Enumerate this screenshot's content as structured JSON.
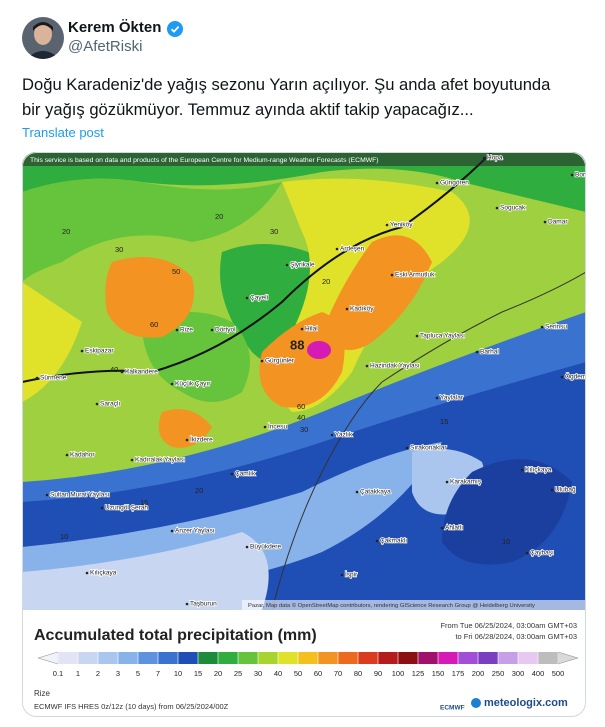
{
  "author": {
    "name": "Kerem Ökten",
    "handle": "@AfetRiski"
  },
  "post": {
    "lines": [
      "Doğu Karadeniz'de yağış sezonu Yarın açılıyor. Şu anda afet boyutunda",
      "bir yağış gözükmüyor. Temmuz ayında aktif takip yapacağız..."
    ],
    "translate": "Translate post"
  },
  "map": {
    "notice": "This service is based on data and products of the European Centre for Medium-range Weather Forecasts (ECMWF)",
    "attribution": "Pazar, Map data © OpenStreetMap contributors, rendering GIScience Research Group @ Heidelberg University",
    "max_value": "88",
    "places": [
      "Hopa",
      "Güngören",
      "Sogucak",
      "Borç",
      "Damar",
      "Yeniköy",
      "Ardeşen",
      "Şiyrikale",
      "Eski Armutluk",
      "Çayeli",
      "Kadıköy",
      "Rize",
      "Dörtyol",
      "Tapluca Yaylası",
      "Serinsu",
      "Eskipazar",
      "Hilal",
      "Gürgünler",
      "Hazindak Yaylası",
      "Barhal",
      "Sürmene",
      "Kalkandere",
      "Küçük Çayır",
      "Ögdem",
      "Yaylalar",
      "Saraçlı",
      "İkizdere",
      "Yazlık",
      "İncesu",
      "Sırakonaklar",
      "Kılıçkaya",
      "Karakamış",
      "Kadahor",
      "Kadıralak Yaylası",
      "Çamlık",
      "Sultan Murat Yaylası",
      "Uzungöl Şerah",
      "Çatakkaya",
      "Ulubağ",
      "Ahlatlı",
      "Anzer Yaylası",
      "Çakmaklı",
      "Büyükdere",
      "Çaybaşı",
      "İspir",
      "Kılıçkaya",
      "Taşburun"
    ],
    "contours": [
      20,
      30,
      20,
      50,
      60,
      40,
      30,
      60,
      40,
      30,
      20,
      15,
      10,
      15,
      10,
      20
    ]
  },
  "legend": {
    "title": "Accumulated total precipitation (mm)",
    "from": "From Tue 06/25/2024, 03:00am GMT+03",
    "to": "to Fri 06/28/2024, 03:00am GMT+03",
    "ticks": [
      0.1,
      1,
      2,
      3,
      5,
      7,
      10,
      15,
      20,
      25,
      30,
      40,
      50,
      60,
      70,
      80,
      90,
      100,
      125,
      150,
      175,
      200,
      250,
      300,
      400,
      500
    ],
    "colors": [
      "#f2f2fa",
      "#e3e3f5",
      "#c9d6f2",
      "#aac6ee",
      "#88b2ea",
      "#5d93de",
      "#3a73cf",
      "#1f4fb5",
      "#1c8c3a",
      "#2fae3f",
      "#66c43c",
      "#a8d430",
      "#e0e22a",
      "#f4c020",
      "#f39321",
      "#ec6a1e",
      "#d93c1f",
      "#b51c1c",
      "#8c1010",
      "#a0106c",
      "#d51ab6",
      "#a24fd8",
      "#7a3fc0",
      "#c6a0e6",
      "#e6c8f0",
      "#bdbdbd",
      "#d9d9d9"
    ],
    "place": "Rize",
    "model": "ECMWF IFS HRES 0z/12z (10 days) from  06/25/2024/00Z",
    "logo1": "ECMWF",
    "logo2": "meteologix.com"
  }
}
